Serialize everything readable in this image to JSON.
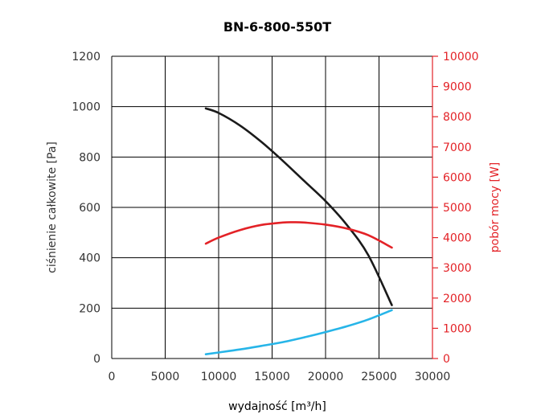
{
  "chart_data": {
    "type": "line",
    "title": "BN-6-800-550T",
    "xlabel": "wydajność [m³/h]",
    "ylabel_left": "ciśnienie całkowite [Pa]",
    "ylabel_right": "pobór mocy [W]",
    "xlim": [
      0,
      30000
    ],
    "ylim_left": [
      0,
      1200
    ],
    "ylim_right": [
      0,
      10000
    ],
    "x_ticks": [
      "0",
      "5000",
      "10000",
      "15000",
      "20000",
      "25000",
      "30000"
    ],
    "y_left_ticks": [
      "0",
      "200",
      "400",
      "600",
      "800",
      "1000",
      "1200"
    ],
    "y_right_ticks": [
      "0",
      "1000",
      "2000",
      "3000",
      "4000",
      "5000",
      "6000",
      "7000",
      "8000",
      "9000",
      "10000"
    ],
    "grid": true,
    "colors": {
      "pressure": "#1a1a1a",
      "power": "#e32227",
      "efficiency": "#27b5e8",
      "right_axis": "#e32227",
      "grid": "#000000"
    },
    "series": [
      {
        "key": "pressure",
        "axis": "left",
        "x": [
          8800,
          10000,
          12000,
          14000,
          16000,
          18000,
          20000,
          22000,
          24000,
          26200
        ],
        "y": [
          993,
          975,
          925,
          860,
          785,
          705,
          625,
          530,
          410,
          212
        ]
      },
      {
        "key": "power",
        "axis": "right",
        "x": [
          8800,
          10000,
          12000,
          14000,
          16000,
          17000,
          18000,
          20000,
          22000,
          24000,
          26200
        ],
        "y": [
          3800,
          4000,
          4250,
          4420,
          4500,
          4510,
          4500,
          4430,
          4300,
          4080,
          3670
        ]
      },
      {
        "key": "efficiency",
        "axis": "left",
        "x": [
          8800,
          10000,
          12000,
          14000,
          16000,
          18000,
          20000,
          22000,
          24000,
          26200
        ],
        "y": [
          17,
          24,
          36,
          50,
          65,
          84,
          105,
          128,
          155,
          192
        ]
      }
    ]
  }
}
